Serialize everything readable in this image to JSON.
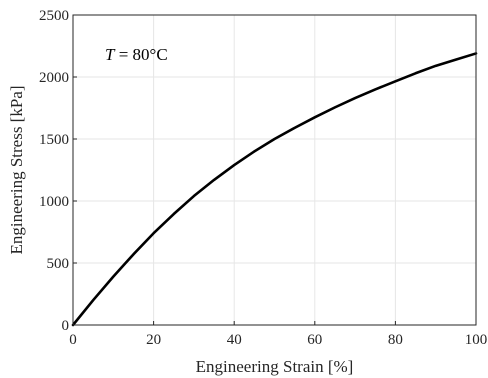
{
  "chart_data": {
    "type": "line",
    "title": "",
    "xlabel": "Engineering Strain [%]",
    "ylabel": "Engineering Stress [kPa]",
    "xlim": [
      0,
      100
    ],
    "ylim": [
      0,
      2500
    ],
    "x_ticks": [
      "0",
      "20",
      "40",
      "60",
      "80",
      "100"
    ],
    "y_ticks": [
      "0",
      "500",
      "1000",
      "1500",
      "2000",
      "2500"
    ],
    "grid": true,
    "legend": "none",
    "annotation": {
      "italic": "T",
      "text": " = 80°C"
    },
    "series": [
      {
        "color": "#000000",
        "x": [
          0,
          5,
          10,
          15,
          20,
          25,
          30,
          35,
          40,
          45,
          50,
          55,
          60,
          65,
          70,
          75,
          80,
          85,
          90,
          95,
          100
        ],
        "y": [
          0,
          200,
          390,
          570,
          740,
          895,
          1040,
          1170,
          1290,
          1400,
          1500,
          1590,
          1675,
          1755,
          1830,
          1900,
          1965,
          2030,
          2090,
          2140,
          2190
        ]
      }
    ]
  }
}
